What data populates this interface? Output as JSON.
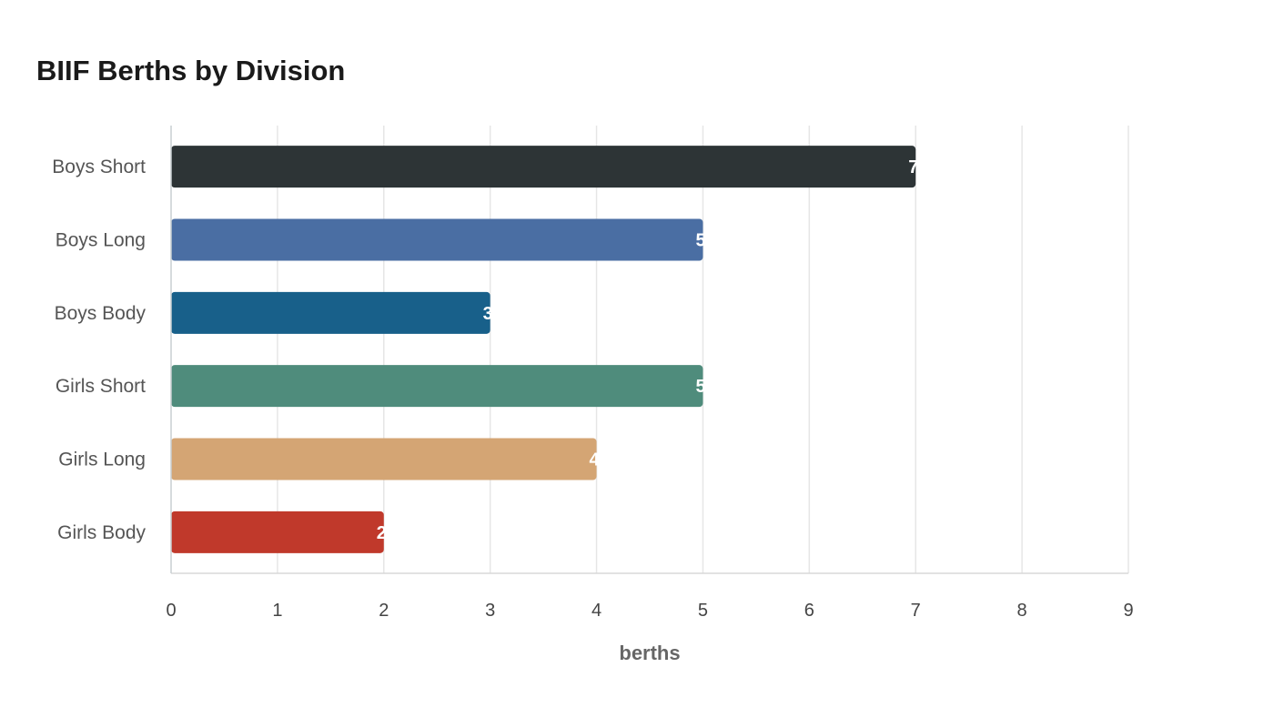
{
  "chart_data": {
    "type": "bar",
    "orientation": "horizontal",
    "title": "BIIF Berths by Division",
    "xlabel": "berths",
    "ylabel": "",
    "categories": [
      "Boys Short",
      "Boys Long",
      "Boys Body",
      "Girls Short",
      "Girls Long",
      "Girls Body"
    ],
    "values": [
      7,
      5,
      3,
      5,
      4,
      2
    ],
    "colors": [
      "#2d3436",
      "#4a6ea3",
      "#18608a",
      "#4f8c7c",
      "#d4a574",
      "#c0392b"
    ],
    "xlim": [
      0,
      9
    ],
    "xticks": [
      "0",
      "1",
      "2",
      "3",
      "4",
      "5",
      "6",
      "7",
      "8",
      "9"
    ],
    "grid": true,
    "legend": "none"
  }
}
